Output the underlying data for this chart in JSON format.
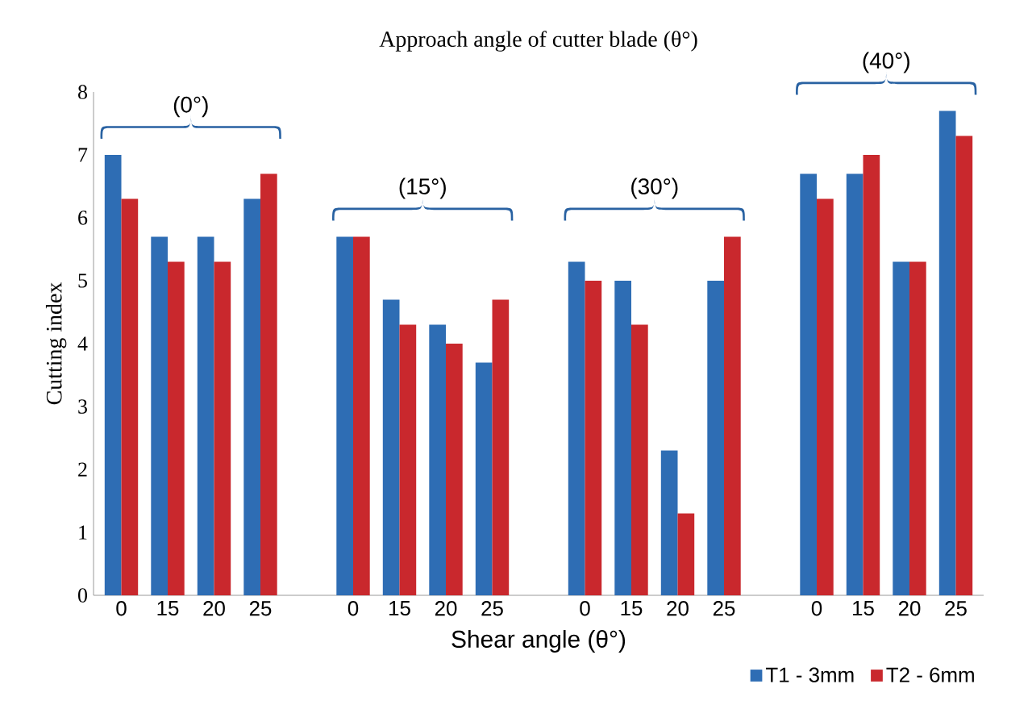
{
  "chart_data": {
    "type": "bar",
    "title": "Approach angle of cutter blade (θ°)",
    "xlabel": "Shear angle (θ°)",
    "ylabel": "Cutting index",
    "categories": [
      "0",
      "15",
      "20",
      "25",
      null,
      "0",
      "15",
      "20",
      "25",
      null,
      "0",
      "15",
      "20",
      "25",
      null,
      "0",
      "15",
      "20",
      "25"
    ],
    "series": [
      {
        "name": "T1 - 3mm",
        "color": "#2e6db4",
        "values": [
          7.0,
          5.7,
          5.7,
          6.3,
          null,
          5.7,
          4.7,
          4.3,
          3.7,
          null,
          5.3,
          5.0,
          2.3,
          5.0,
          null,
          6.7,
          6.7,
          5.3,
          7.7
        ]
      },
      {
        "name": "T2 - 6mm",
        "color": "#c9282d",
        "values": [
          6.3,
          5.3,
          5.3,
          6.7,
          null,
          5.7,
          4.3,
          4.0,
          4.7,
          null,
          5.0,
          4.3,
          1.3,
          5.7,
          null,
          6.3,
          7.0,
          5.3,
          7.3
        ]
      }
    ],
    "annotations": [
      "(0°)",
      "(15°)",
      "(30°)",
      "(40°)"
    ],
    "ylim": [
      0,
      8
    ],
    "yticks": [
      0,
      1,
      2,
      3,
      4,
      5,
      6,
      7,
      8
    ],
    "legend": "bottom right",
    "grid": false
  }
}
